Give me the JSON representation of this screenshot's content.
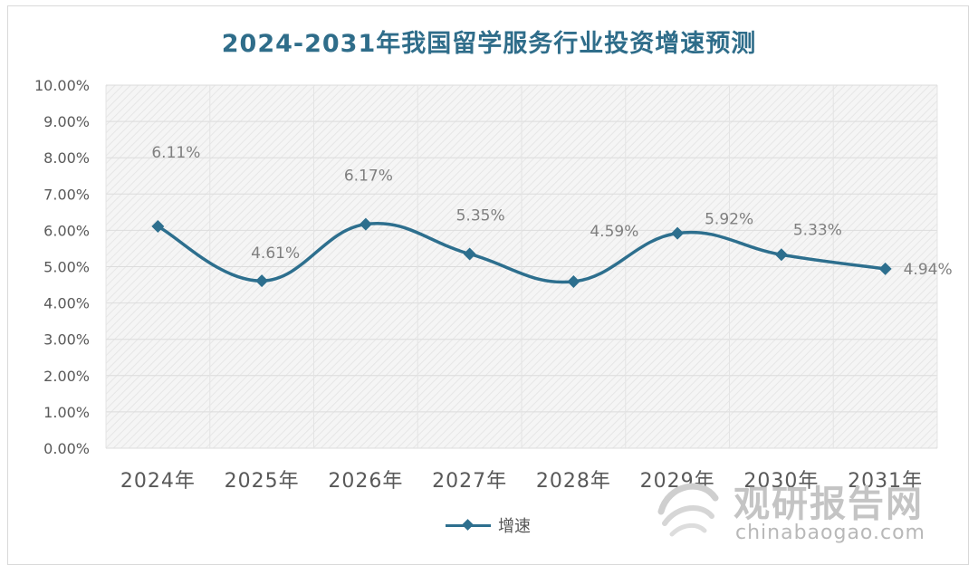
{
  "chart_data": {
    "type": "line",
    "title": "2024-2031年我国留学服务行业投资增速预测",
    "categories": [
      "2024年",
      "2025年",
      "2026年",
      "2027年",
      "2028年",
      "2029年",
      "2030年",
      "2031年"
    ],
    "series": [
      {
        "name": "增速",
        "values": [
          6.11,
          4.61,
          6.17,
          5.35,
          4.59,
          5.92,
          5.33,
          4.94
        ],
        "data_labels": [
          "6.11%",
          "4.61%",
          "6.17%",
          "5.35%",
          "4.59%",
          "5.92%",
          "5.33%",
          "4.94%"
        ],
        "color": "#2d6f8e",
        "marker": "diamond",
        "smooth": true
      }
    ],
    "ylim": [
      0,
      10
    ],
    "y_ticks": [
      "0.00%",
      "1.00%",
      "2.00%",
      "3.00%",
      "4.00%",
      "5.00%",
      "6.00%",
      "7.00%",
      "8.00%",
      "9.00%",
      "10.00%"
    ],
    "grid": true,
    "plot_background": "hatched-gray",
    "legend_position": "bottom-center",
    "xlabel": "",
    "ylabel": ""
  },
  "watermark": {
    "brand_cn": "观研报告网",
    "brand_en": "chinabaogao.com",
    "icon": "swirl-logo-icon"
  },
  "colors": {
    "title": "#2f6d8a",
    "line": "#2d6f8e",
    "axis_text": "#595959",
    "data_label": "#7f7f7f"
  }
}
